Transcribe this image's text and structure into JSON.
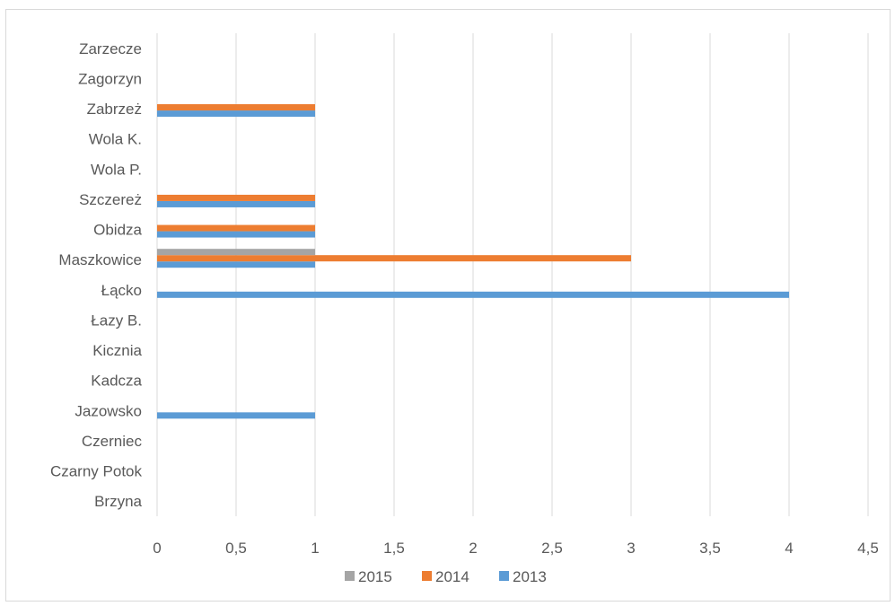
{
  "chart_data": {
    "type": "bar",
    "orientation": "horizontal",
    "categories": [
      "Brzyna",
      "Czarny Potok",
      "Czerniec",
      "Jazowsko",
      "Kadcza",
      "Kicznia",
      "Łazy B.",
      "Łącko",
      "Maszkowice",
      "Obidza",
      "Szczereż",
      "Wola P.",
      "Wola K.",
      "Zabrzeż",
      "Zagorzyn",
      "Zarzecze"
    ],
    "series": [
      {
        "name": "2013",
        "color": "#5b9bd5",
        "values": [
          0,
          0,
          0,
          1,
          0,
          0,
          0,
          4,
          1,
          1,
          1,
          0,
          0,
          1,
          0,
          0
        ]
      },
      {
        "name": "2014",
        "color": "#ed7d31",
        "values": [
          0,
          0,
          0,
          0,
          0,
          0,
          0,
          0,
          3,
          1,
          1,
          0,
          0,
          1,
          0,
          0
        ]
      },
      {
        "name": "2015",
        "color": "#a5a5a5",
        "values": [
          0,
          0,
          0,
          0,
          0,
          0,
          0,
          0,
          1,
          0,
          0,
          0,
          0,
          0,
          0,
          0
        ]
      }
    ],
    "xlim": [
      0,
      4.5
    ],
    "x_ticks": [
      0,
      0.5,
      1,
      1.5,
      2,
      2.5,
      3,
      3.5,
      4,
      4.5
    ],
    "x_tick_labels": [
      "0",
      "0,5",
      "1",
      "1,5",
      "2",
      "2,5",
      "3",
      "3,5",
      "4",
      "4,5"
    ],
    "grid": true,
    "legend_placement": "bottom",
    "legend_order": [
      "2015",
      "2014",
      "2013"
    ],
    "title": "",
    "xlabel": "",
    "ylabel": ""
  }
}
